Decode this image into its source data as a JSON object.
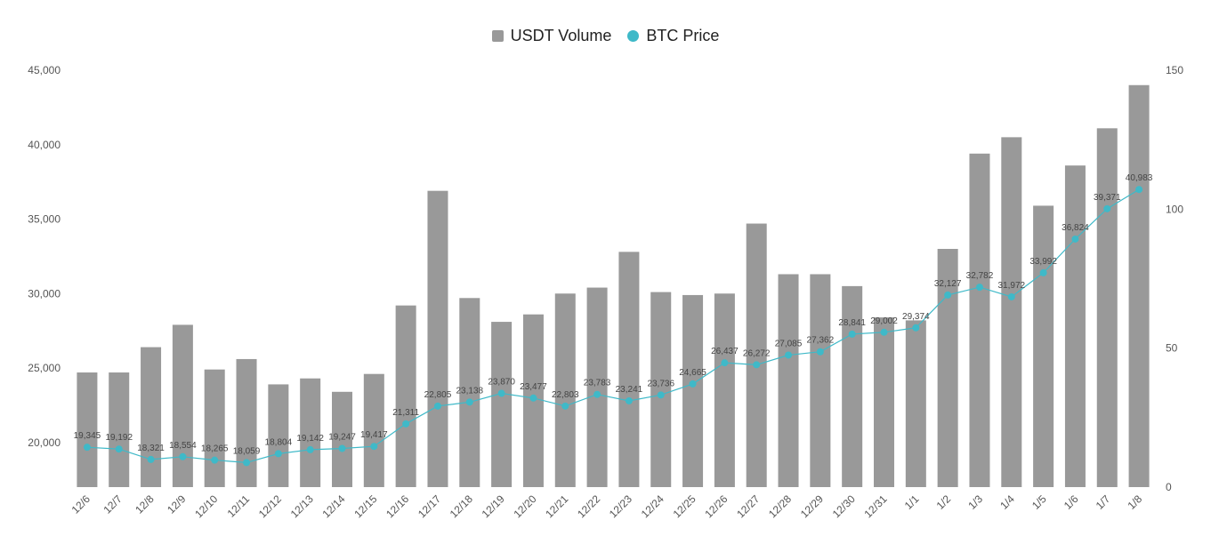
{
  "chart_data": {
    "type": "bar",
    "categories": [
      "12/6",
      "12/7",
      "12/8",
      "12/9",
      "12/10",
      "12/11",
      "12/12",
      "12/13",
      "12/14",
      "12/15",
      "12/16",
      "12/17",
      "12/18",
      "12/19",
      "12/20",
      "12/21",
      "12/22",
      "12/23",
      "12/24",
      "12/25",
      "12/26",
      "12/27",
      "12/28",
      "12/29",
      "12/30",
      "12/31",
      "1/1",
      "1/2",
      "1/3",
      "1/4",
      "1/5",
      "1/6",
      "1/7",
      "1/8"
    ],
    "series": [
      {
        "name": "USDT Volume",
        "type": "bar",
        "axis": "left",
        "color": "#999999",
        "values": [
          24700,
          24700,
          26400,
          27900,
          24900,
          25600,
          23900,
          24300,
          23400,
          24600,
          29200,
          36900,
          29700,
          28100,
          28600,
          30000,
          30400,
          32800,
          30100,
          29900,
          30000,
          34700,
          31300,
          31300,
          30500,
          28400,
          28200,
          33000,
          39400,
          40500,
          35900,
          38600,
          41100,
          44000
        ]
      },
      {
        "name": "BTC Price",
        "type": "line",
        "axis": "right",
        "color": "#3fb9c8",
        "values": [
          19345,
          19192,
          18321,
          18554,
          18265,
          18059,
          18804,
          19142,
          19247,
          19417,
          21311,
          22805,
          23138,
          23870,
          23477,
          22803,
          23783,
          23241,
          23736,
          24665,
          26437,
          26272,
          27085,
          27362,
          28841,
          29002,
          29374,
          32127,
          32782,
          31972,
          33992,
          36824,
          39371,
          40983
        ],
        "labels": [
          "19,345",
          "19,192",
          "18,321",
          "18,554",
          "18,265",
          "18,059",
          "18,804",
          "19,142",
          "19,247",
          "19,417",
          "21,311",
          "22,805",
          "23,138",
          "23,870",
          "23,477",
          "22,803",
          "23,783",
          "23,241",
          "23,736",
          "24,665",
          "26,437",
          "26,272",
          "27,085",
          "27,362",
          "28,841",
          "29,002",
          "29,374",
          "32,127",
          "32,782",
          "31,972",
          "33,992",
          "36,824",
          "39,371",
          "40,983"
        ]
      }
    ],
    "left_axis": {
      "min": 17000,
      "max": 45000,
      "ticks": [
        20000,
        25000,
        30000,
        35000,
        40000,
        45000
      ],
      "tick_labels": [
        "20,000",
        "25,000",
        "30,000",
        "35,000",
        "40,000",
        "45,000"
      ]
    },
    "right_axis": {
      "min": 0,
      "max": 150,
      "ticks": [
        0,
        50,
        100,
        150
      ],
      "tick_labels": [
        "0",
        "50",
        "100",
        "150"
      ]
    },
    "line_scale": {
      "min": 16000,
      "max": 51000
    },
    "legend_position": "top-center",
    "grid": false
  }
}
